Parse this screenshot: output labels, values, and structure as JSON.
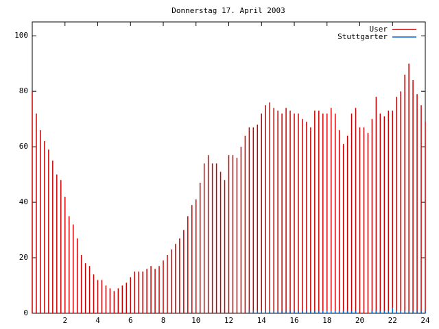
{
  "chart_data": {
    "type": "impulse",
    "title": "Donnerstag 17. April 2003",
    "x": [
      0,
      0.25,
      0.5,
      0.75,
      1,
      1.25,
      1.5,
      1.75,
      2,
      2.25,
      2.5,
      2.75,
      3,
      3.25,
      3.5,
      3.75,
      4,
      4.25,
      4.5,
      4.75,
      5,
      5.25,
      5.5,
      5.75,
      6,
      6.25,
      6.5,
      6.75,
      7,
      7.25,
      7.5,
      7.75,
      8,
      8.25,
      8.5,
      8.75,
      9,
      9.25,
      9.5,
      9.75,
      10,
      10.25,
      10.5,
      10.75,
      11,
      11.25,
      11.5,
      11.75,
      12,
      12.25,
      12.5,
      12.75,
      13,
      13.25,
      13.5,
      13.75,
      14,
      14.25,
      14.5,
      14.75,
      15,
      15.25,
      15.5,
      15.75,
      16,
      16.25,
      16.5,
      16.75,
      17,
      17.25,
      17.5,
      17.75,
      18,
      18.25,
      18.5,
      18.75,
      19,
      19.25,
      19.5,
      19.75,
      20,
      20.25,
      20.5,
      20.75,
      21,
      21.25,
      21.5,
      21.75,
      22,
      22.25,
      22.5,
      22.75,
      23,
      23.25,
      23.5,
      23.75,
      24
    ],
    "series": [
      {
        "name": "User",
        "color": "#cc0000",
        "values": [
          80,
          72,
          66,
          62,
          59,
          55,
          50,
          48,
          42,
          35,
          32,
          27,
          21,
          18,
          17,
          14,
          12,
          12,
          10,
          9,
          8,
          9,
          10,
          11,
          13,
          15,
          15,
          15,
          16,
          17,
          16,
          17,
          19,
          21,
          23,
          25,
          27,
          30,
          35,
          39,
          41,
          47,
          54,
          57,
          54,
          54,
          51,
          48,
          57,
          57,
          56,
          60,
          64,
          67,
          67,
          68,
          72,
          75,
          76,
          74,
          73,
          72,
          74,
          73,
          72,
          72,
          70,
          69,
          67,
          73,
          73,
          72,
          72,
          74,
          72,
          66,
          61,
          64,
          72,
          74,
          67,
          67,
          65,
          70,
          78,
          72,
          71,
          73,
          73,
          78,
          80,
          86,
          90,
          84,
          79,
          75,
          69
        ]
      },
      {
        "name": "Stuttgarter",
        "color": "#0066cc",
        "values": [
          0,
          0,
          0,
          0,
          0,
          0,
          0,
          0,
          0,
          0,
          0,
          0,
          0,
          0,
          0,
          0,
          0,
          0,
          0,
          0,
          0,
          0,
          0,
          0,
          0,
          0,
          0,
          0,
          0,
          0,
          0,
          0,
          0,
          0,
          0,
          0,
          0,
          0,
          0,
          0,
          0,
          0,
          0,
          0,
          0,
          0,
          0,
          0,
          0,
          0,
          0,
          0,
          0,
          1,
          1,
          1,
          1,
          1,
          1,
          1,
          1,
          1,
          1,
          1,
          1,
          1,
          1,
          1,
          1,
          1,
          1,
          1,
          1,
          1,
          1,
          1,
          1,
          1,
          1,
          1,
          0,
          0,
          0,
          1,
          1,
          1,
          1,
          1,
          2,
          1,
          1,
          1,
          1,
          1,
          1,
          1,
          1
        ]
      }
    ],
    "xlim": [
      0,
      24
    ],
    "xticks": [
      2,
      4,
      6,
      8,
      10,
      12,
      14,
      16,
      18,
      20,
      22,
      24
    ],
    "ylim": [
      0,
      105
    ],
    "yticks": [
      0,
      20,
      40,
      60,
      80,
      100
    ]
  }
}
